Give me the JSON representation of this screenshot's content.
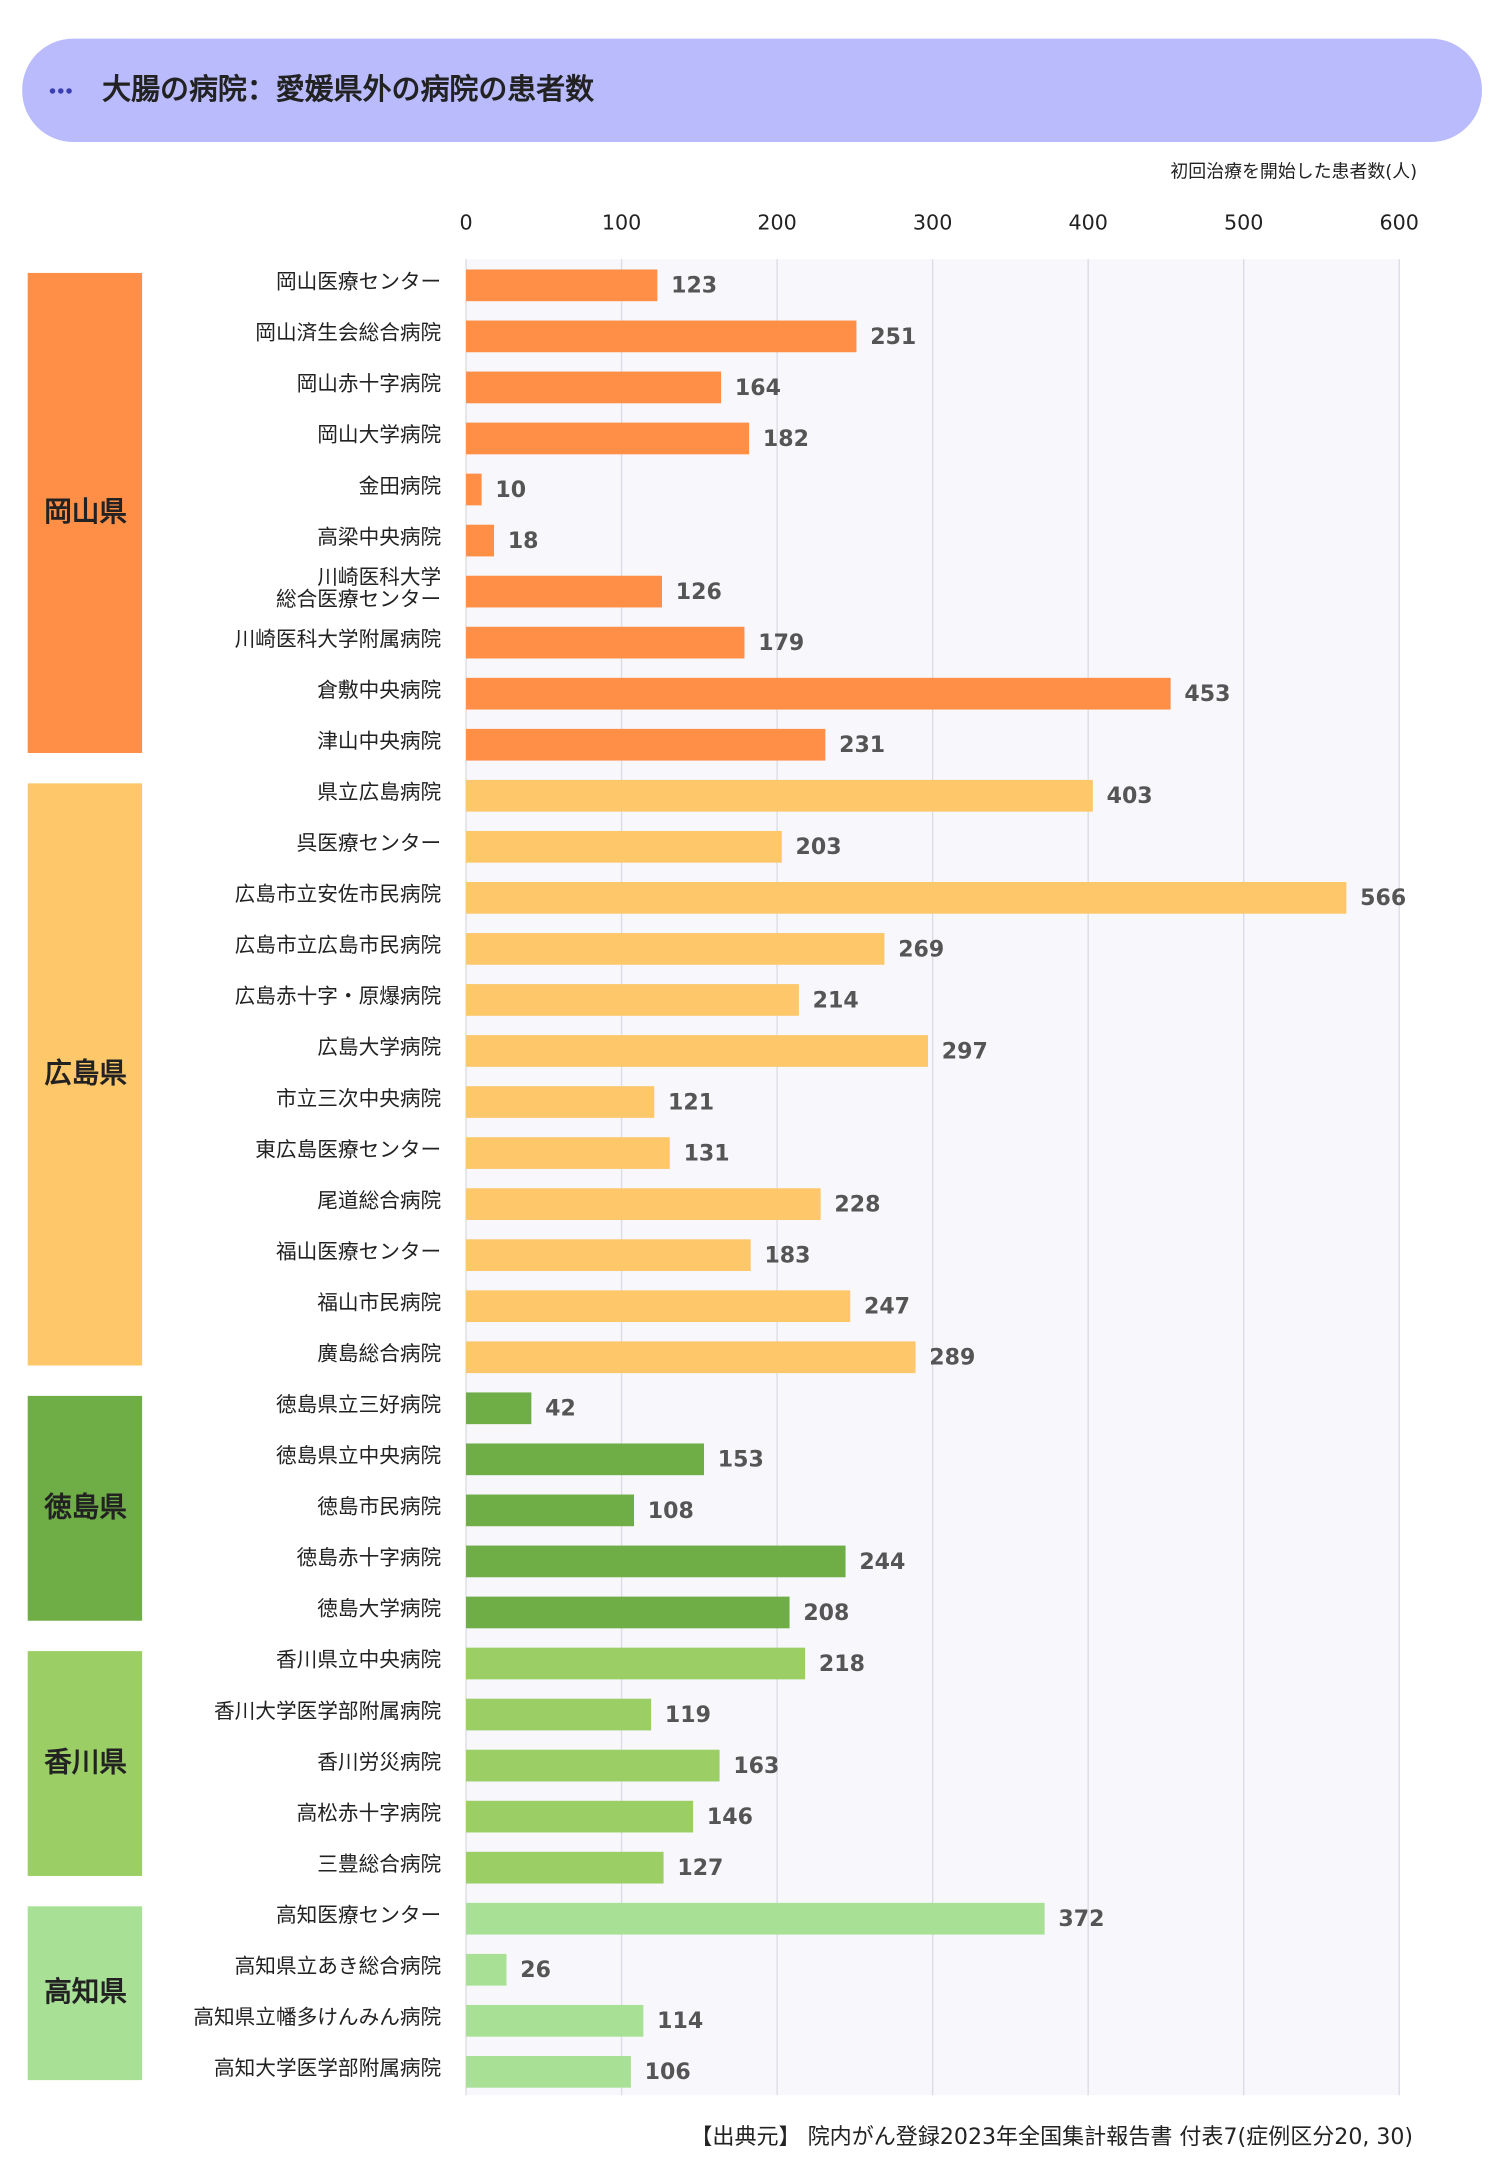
{
  "chart_data": {
    "type": "bar",
    "orientation": "horizontal",
    "title": "大腸の病院：愛媛県外の病院の患者数",
    "x_label": "初回治療を開始した患者数(人)",
    "source": "【出典元】 院内がん登録2023年全国集計報告書 付表7(症例区分20, 30)",
    "xlim": [
      0,
      600
    ],
    "xticks": [
      0,
      100,
      200,
      300,
      400,
      500,
      600
    ],
    "grid": true,
    "series": [
      {
        "name": "岡山県",
        "color": "#ff8f47",
        "categories": [
          "岡山医療センター",
          "岡山済生会総合病院",
          "岡山赤十字病院",
          "岡山大学病院",
          "金田病院",
          "高梁中央病院",
          "川崎医科大学\n総合医療センター",
          "川崎医科大学附属病院",
          "倉敷中央病院",
          "津山中央病院"
        ],
        "values": [
          123,
          251,
          164,
          182,
          10,
          18,
          126,
          179,
          453,
          231
        ]
      },
      {
        "name": "広島県",
        "color": "#fdc76a",
        "categories": [
          "県立広島病院",
          "呉医療センター",
          "広島市立安佐市民病院",
          "広島市立広島市民病院",
          "広島赤十字・原爆病院",
          "広島大学病院",
          "市立三次中央病院",
          "東広島医療センター",
          "尾道総合病院",
          "福山医療センター",
          "福山市民病院",
          "廣島総合病院"
        ],
        "values": [
          403,
          203,
          566,
          269,
          214,
          297,
          121,
          131,
          228,
          183,
          247,
          289
        ]
      },
      {
        "name": "徳島県",
        "color": "#6fad47",
        "categories": [
          "徳島県立三好病院",
          "徳島県立中央病院",
          "徳島市民病院",
          "徳島赤十字病院",
          "徳島大学病院"
        ],
        "values": [
          42,
          153,
          108,
          244,
          208
        ]
      },
      {
        "name": "香川県",
        "color": "#9bcf65",
        "categories": [
          "香川県立中央病院",
          "香川大学医学部附属病院",
          "香川労災病院",
          "高松赤十字病院",
          "三豊総合病院"
        ],
        "values": [
          218,
          119,
          163,
          146,
          127
        ]
      },
      {
        "name": "高知県",
        "color": "#a8e095",
        "categories": [
          "高知医療センター",
          "高知県立あき総合病院",
          "高知県立幡多けんみん病院",
          "高知大学医学部附属病院"
        ],
        "values": [
          372,
          26,
          114,
          106
        ]
      }
    ]
  }
}
